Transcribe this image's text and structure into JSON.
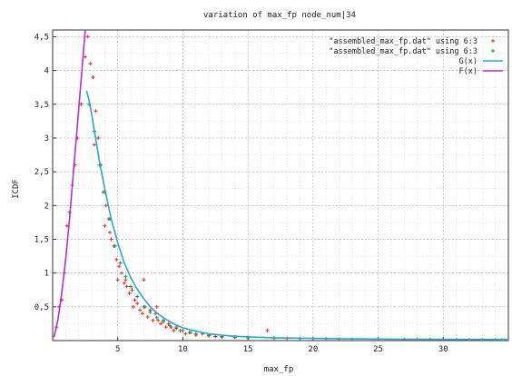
{
  "chart_data": {
    "type": "scatter",
    "title": "variation of max_fp node_num|34",
    "xlabel": "max_fp",
    "ylabel": "ICDF",
    "xlim": [
      0,
      35
    ],
    "ylim": [
      0,
      4.6
    ],
    "x_ticks": [
      5,
      10,
      15,
      20,
      25,
      30
    ],
    "y_ticks": [
      0.5,
      1,
      1.5,
      2,
      2.5,
      3,
      3.5,
      4,
      4.5
    ],
    "x_tick_labels": [
      "5",
      "10",
      "15",
      "20",
      "25",
      "30"
    ],
    "y_tick_labels": [
      "0,5",
      "1",
      "1,5",
      "2",
      "2,5",
      "3",
      "3,5",
      "4",
      "4,5"
    ],
    "grid": true,
    "legend_position": "top-right",
    "series": [
      {
        "name": "\"assembled_max_fp.dat\" using 6:3",
        "kind": "points",
        "color": "#e8282a",
        "points": [
          [
            0.3,
            0.2
          ],
          [
            0.5,
            0.5
          ],
          [
            0.7,
            0.6
          ],
          [
            0.9,
            1.0
          ],
          [
            1.1,
            1.7
          ],
          [
            1.3,
            1.9
          ],
          [
            1.5,
            2.3
          ],
          [
            1.7,
            2.6
          ],
          [
            1.9,
            3.0
          ],
          [
            2.2,
            3.5
          ],
          [
            2.5,
            4.2
          ],
          [
            2.7,
            4.5
          ],
          [
            2.9,
            4.1
          ],
          [
            3.1,
            3.9
          ],
          [
            3.3,
            3.4
          ],
          [
            3.5,
            3.0
          ],
          [
            3.2,
            2.9
          ],
          [
            3.7,
            2.6
          ],
          [
            3.9,
            2.2
          ],
          [
            4.1,
            2.0
          ],
          [
            4.3,
            1.8
          ],
          [
            4.0,
            1.7
          ],
          [
            4.5,
            1.5
          ],
          [
            4.7,
            1.4
          ],
          [
            4.4,
            1.6
          ],
          [
            4.9,
            1.2
          ],
          [
            5.1,
            1.1
          ],
          [
            5.3,
            1.0
          ],
          [
            5.0,
            0.9
          ],
          [
            5.5,
            0.85
          ],
          [
            5.7,
            0.8
          ],
          [
            5.9,
            0.7
          ],
          [
            5.6,
            0.9
          ],
          [
            6.1,
            0.75
          ],
          [
            6.3,
            0.6
          ],
          [
            6.5,
            0.55
          ],
          [
            6.2,
            0.5
          ],
          [
            6.7,
            0.45
          ],
          [
            6.9,
            0.4
          ],
          [
            7.1,
            0.5
          ],
          [
            7.3,
            0.35
          ],
          [
            7.5,
            0.45
          ],
          [
            7.0,
            0.9
          ],
          [
            7.7,
            0.3
          ],
          [
            7.9,
            0.4
          ],
          [
            8.1,
            0.3
          ],
          [
            8.3,
            0.25
          ],
          [
            8.0,
            0.5
          ],
          [
            8.5,
            0.3
          ],
          [
            8.7,
            0.2
          ],
          [
            8.9,
            0.25
          ],
          [
            9.1,
            0.2
          ],
          [
            9.3,
            0.15
          ],
          [
            9.5,
            0.2
          ],
          [
            9.8,
            0.15
          ],
          [
            10.2,
            0.1
          ],
          [
            10.6,
            0.12
          ],
          [
            11.0,
            0.08
          ],
          [
            11.5,
            0.1
          ],
          [
            12.0,
            0.07
          ],
          [
            12.5,
            0.06
          ],
          [
            13.0,
            0.05
          ],
          [
            14.0,
            0.05
          ],
          [
            15.0,
            0.04
          ],
          [
            16.5,
            0.15
          ],
          [
            18.0,
            0.03
          ],
          [
            20.0,
            0.03
          ],
          [
            22.0,
            0.02
          ],
          [
            25.0,
            0.02
          ],
          [
            28.0,
            0.02
          ],
          [
            30.0,
            0.01
          ],
          [
            32.0,
            0.01
          ],
          [
            34.0,
            0.01
          ]
        ]
      },
      {
        "name": "\"assembled_max_fp.dat\" using 6:3",
        "kind": "points",
        "color": "#1a8f3c",
        "points": [
          [
            2.8,
            3.5
          ],
          [
            3.2,
            3.1
          ],
          [
            3.6,
            2.6
          ],
          [
            4.0,
            2.2
          ],
          [
            4.4,
            1.8
          ],
          [
            4.8,
            1.4
          ],
          [
            5.2,
            1.15
          ],
          [
            5.6,
            0.95
          ],
          [
            6.0,
            0.8
          ],
          [
            6.5,
            0.65
          ],
          [
            7.0,
            0.5
          ],
          [
            7.5,
            0.42
          ],
          [
            8.0,
            0.34
          ],
          [
            8.5,
            0.28
          ],
          [
            9.0,
            0.22
          ],
          [
            9.5,
            0.18
          ],
          [
            10.0,
            0.15
          ],
          [
            10.5,
            0.12
          ],
          [
            11.0,
            0.1
          ],
          [
            12.0,
            0.08
          ],
          [
            13.0,
            0.06
          ],
          [
            14.0,
            0.05
          ],
          [
            15.0,
            0.045
          ],
          [
            17.0,
            0.035
          ],
          [
            19.0,
            0.03
          ],
          [
            21.0,
            0.025
          ],
          [
            23.0,
            0.02
          ],
          [
            25.0,
            0.02
          ],
          [
            27.0,
            0.015
          ],
          [
            29.0,
            0.015
          ],
          [
            31.0,
            0.012
          ],
          [
            33.0,
            0.01
          ],
          [
            34.5,
            0.01
          ]
        ]
      },
      {
        "name": "G(x)",
        "kind": "line",
        "color": "#2aa8c8",
        "points": [
          [
            2.6,
            3.7
          ],
          [
            2.8,
            3.55
          ],
          [
            3.0,
            3.35
          ],
          [
            3.3,
            3.0
          ],
          [
            3.6,
            2.65
          ],
          [
            4.0,
            2.25
          ],
          [
            4.5,
            1.8
          ],
          [
            5.0,
            1.45
          ],
          [
            5.5,
            1.15
          ],
          [
            6.0,
            0.93
          ],
          [
            6.5,
            0.76
          ],
          [
            7.0,
            0.62
          ],
          [
            7.5,
            0.5
          ],
          [
            8.0,
            0.41
          ],
          [
            8.5,
            0.34
          ],
          [
            9.0,
            0.28
          ],
          [
            9.5,
            0.23
          ],
          [
            10.0,
            0.19
          ],
          [
            11.0,
            0.14
          ],
          [
            12.0,
            0.1
          ],
          [
            13.0,
            0.08
          ],
          [
            14.0,
            0.065
          ],
          [
            15.0,
            0.055
          ],
          [
            17.0,
            0.042
          ],
          [
            20.0,
            0.032
          ],
          [
            23.0,
            0.026
          ],
          [
            26.0,
            0.022
          ],
          [
            29.0,
            0.019
          ],
          [
            32.0,
            0.017
          ],
          [
            35.0,
            0.015
          ]
        ]
      },
      {
        "name": "F(x)",
        "kind": "line",
        "color": "#b030d8",
        "points": [
          [
            0.1,
            0.05
          ],
          [
            0.4,
            0.3
          ],
          [
            0.7,
            0.7
          ],
          [
            1.0,
            1.2
          ],
          [
            1.3,
            1.8
          ],
          [
            1.6,
            2.5
          ],
          [
            1.9,
            3.2
          ],
          [
            2.2,
            3.9
          ],
          [
            2.5,
            4.6
          ]
        ]
      }
    ]
  }
}
